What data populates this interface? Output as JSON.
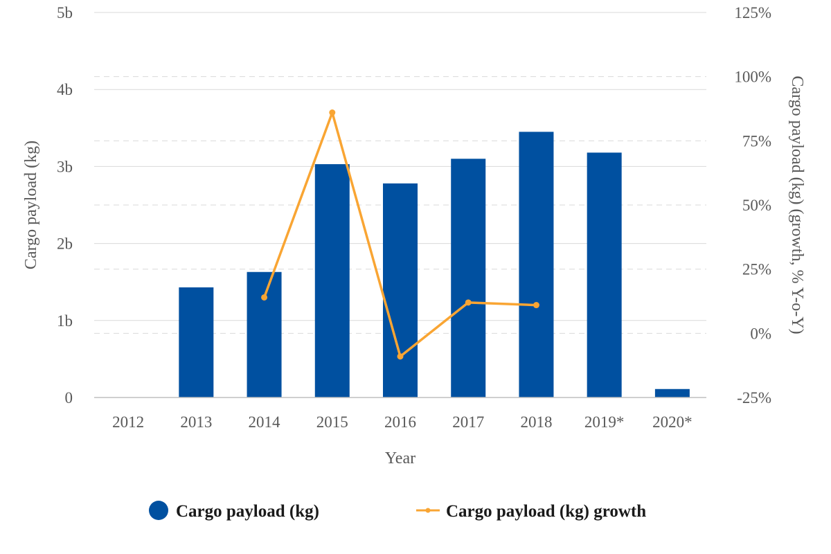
{
  "chart_data": {
    "type": "bar",
    "categories": [
      "2012",
      "2013",
      "2014",
      "2015",
      "2016",
      "2017",
      "2018",
      "2019*",
      "2020*"
    ],
    "xlabel": "Year",
    "ylabel": "Cargo payload (kg)",
    "y2label": "Cargo payload (kg) (growth, % Y-o-Y)",
    "ylim": [
      0,
      5000000000
    ],
    "y2lim": [
      -25,
      125
    ],
    "y_ticks": [
      "0",
      "1b",
      "2b",
      "3b",
      "4b",
      "5b"
    ],
    "y2_ticks": [
      "-25%",
      "0%",
      "25%",
      "50%",
      "75%",
      "100%",
      "125%"
    ],
    "grid": true,
    "legend_position": "bottom",
    "series": [
      {
        "name": "Cargo payload (kg)",
        "type": "bar",
        "axis": "left",
        "color": "#0050a0",
        "values": [
          0,
          1430000000,
          1630000000,
          3030000000,
          2780000000,
          3100000000,
          3450000000,
          3180000000,
          110000000
        ]
      },
      {
        "name": "Cargo payload (kg) growth",
        "type": "line",
        "axis": "right",
        "color": "#f9a533",
        "values": [
          null,
          null,
          14,
          86,
          -9,
          12,
          11,
          null,
          null
        ]
      }
    ]
  }
}
